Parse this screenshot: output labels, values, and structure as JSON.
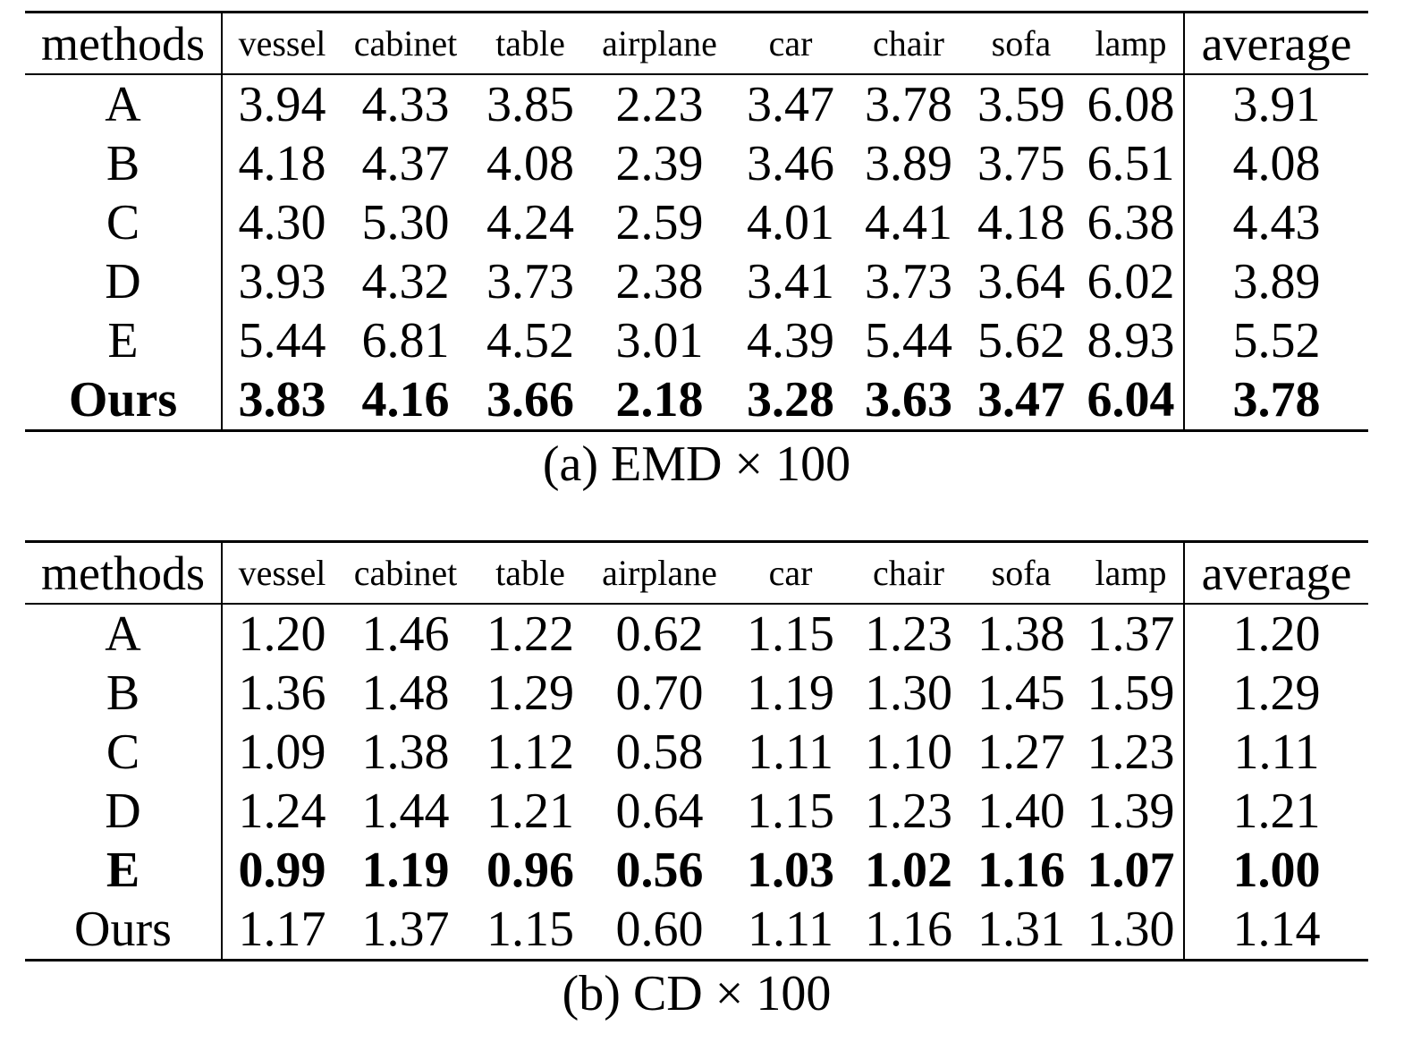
{
  "columns": [
    "methods",
    "vessel",
    "cabinet",
    "table",
    "airplane",
    "car",
    "chair",
    "sofa",
    "lamp",
    "average"
  ],
  "tables": [
    {
      "caption": "(a) EMD × 100",
      "rows": [
        {
          "method": "A",
          "values": [
            "3.94",
            "4.33",
            "3.85",
            "2.23",
            "3.47",
            "3.78",
            "3.59",
            "6.08"
          ],
          "average": "3.91",
          "bold": false
        },
        {
          "method": "B",
          "values": [
            "4.18",
            "4.37",
            "4.08",
            "2.39",
            "3.46",
            "3.89",
            "3.75",
            "6.51"
          ],
          "average": "4.08",
          "bold": false
        },
        {
          "method": "C",
          "values": [
            "4.30",
            "5.30",
            "4.24",
            "2.59",
            "4.01",
            "4.41",
            "4.18",
            "6.38"
          ],
          "average": "4.43",
          "bold": false
        },
        {
          "method": "D",
          "values": [
            "3.93",
            "4.32",
            "3.73",
            "2.38",
            "3.41",
            "3.73",
            "3.64",
            "6.02"
          ],
          "average": "3.89",
          "bold": false
        },
        {
          "method": "E",
          "values": [
            "5.44",
            "6.81",
            "4.52",
            "3.01",
            "4.39",
            "5.44",
            "5.62",
            "8.93"
          ],
          "average": "5.52",
          "bold": false
        },
        {
          "method": "Ours",
          "values": [
            "3.83",
            "4.16",
            "3.66",
            "2.18",
            "3.28",
            "3.63",
            "3.47",
            "6.04"
          ],
          "average": "3.78",
          "bold": true
        }
      ]
    },
    {
      "caption": "(b) CD × 100",
      "rows": [
        {
          "method": "A",
          "values": [
            "1.20",
            "1.46",
            "1.22",
            "0.62",
            "1.15",
            "1.23",
            "1.38",
            "1.37"
          ],
          "average": "1.20",
          "bold": false
        },
        {
          "method": "B",
          "values": [
            "1.36",
            "1.48",
            "1.29",
            "0.70",
            "1.19",
            "1.30",
            "1.45",
            "1.59"
          ],
          "average": "1.29",
          "bold": false
        },
        {
          "method": "C",
          "values": [
            "1.09",
            "1.38",
            "1.12",
            "0.58",
            "1.11",
            "1.10",
            "1.27",
            "1.23"
          ],
          "average": "1.11",
          "bold": false
        },
        {
          "method": "D",
          "values": [
            "1.24",
            "1.44",
            "1.21",
            "0.64",
            "1.15",
            "1.23",
            "1.40",
            "1.39"
          ],
          "average": "1.21",
          "bold": false
        },
        {
          "method": "E",
          "values": [
            "0.99",
            "1.19",
            "0.96",
            "0.56",
            "1.03",
            "1.02",
            "1.16",
            "1.07"
          ],
          "average": "1.00",
          "bold": true
        },
        {
          "method": "Ours",
          "values": [
            "1.17",
            "1.37",
            "1.15",
            "0.60",
            "1.11",
            "1.16",
            "1.31",
            "1.30"
          ],
          "average": "1.14",
          "bold": false
        }
      ]
    }
  ]
}
